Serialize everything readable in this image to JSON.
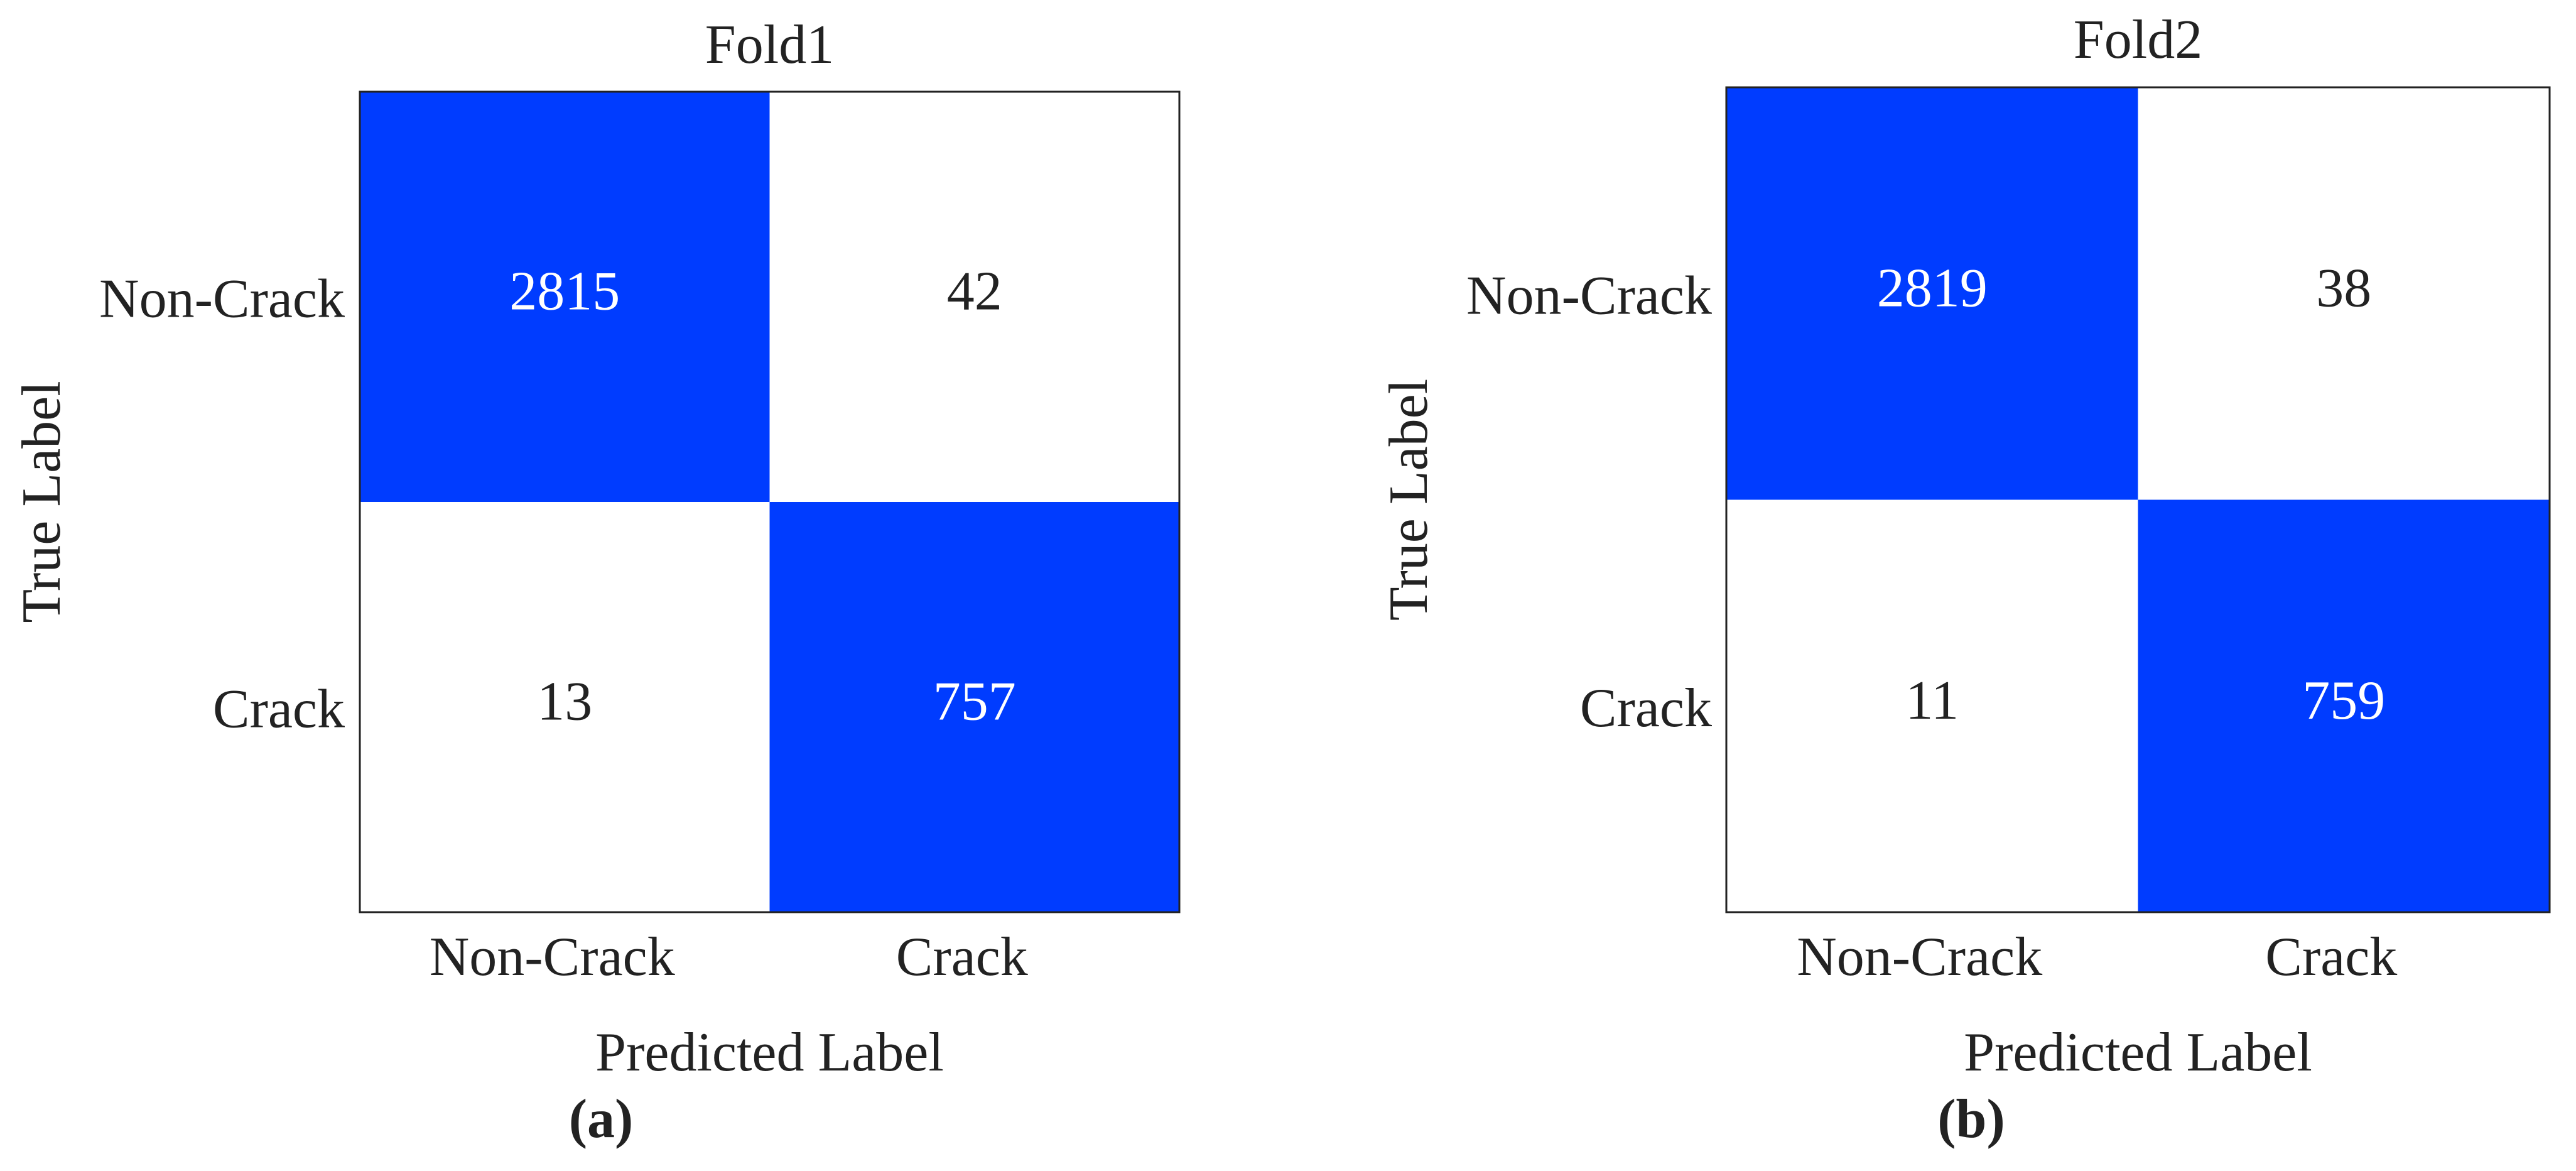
{
  "chart_data": [
    {
      "type": "heatmap",
      "title": "Fold1",
      "x_label": "Predicted Label",
      "y_label": "True Label",
      "x_categories": [
        "Non-Crack",
        "Crack"
      ],
      "y_categories": [
        "Non-Crack",
        "Crack"
      ],
      "values": [
        [
          2815,
          42
        ],
        [
          13,
          757
        ]
      ],
      "colors": [
        [
          "#003cff",
          "#ffffff"
        ],
        [
          "#ffffff",
          "#003cff"
        ]
      ],
      "panel_label": "(a)"
    },
    {
      "type": "heatmap",
      "title": "Fold2",
      "x_label": "Predicted Label",
      "y_label": "True Label",
      "x_categories": [
        "Non-Crack",
        "Crack"
      ],
      "y_categories": [
        "Non-Crack",
        "Crack"
      ],
      "values": [
        [
          2819,
          38
        ],
        [
          11,
          759
        ]
      ],
      "colors": [
        [
          "#003cff",
          "#ffffff"
        ],
        [
          "#ffffff",
          "#003cff"
        ]
      ],
      "panel_label": "(b)"
    }
  ]
}
